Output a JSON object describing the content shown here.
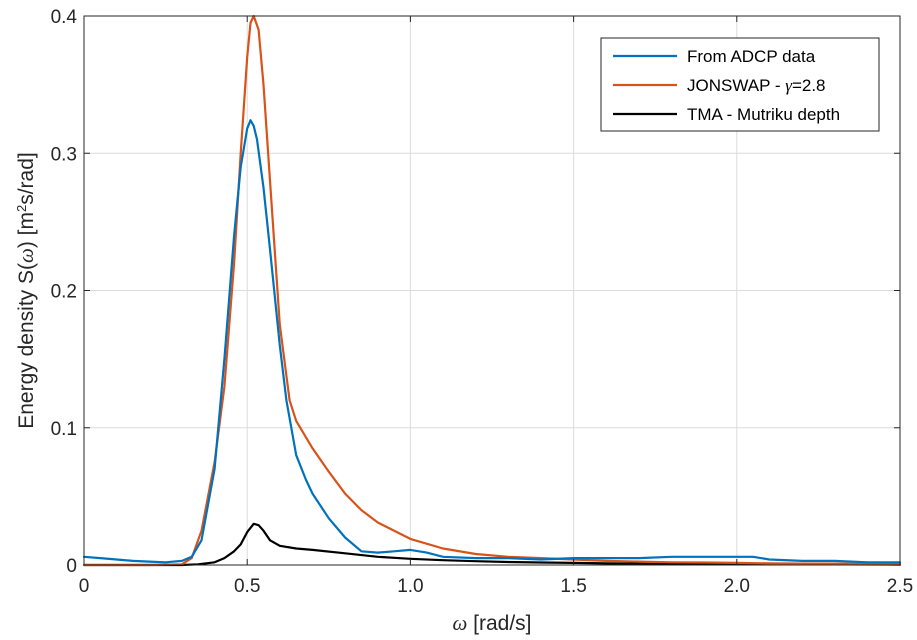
{
  "chart_data": {
    "type": "line",
    "title": "",
    "xlabel_symbol": "ω",
    "xlabel_units": " [rad/s]",
    "ylabel_prefix": "Energy density S(",
    "ylabel_symbol": "ω",
    "ylabel_mid": ") [m",
    "ylabel_sup": "2",
    "ylabel_suffix": "s/rad]",
    "xlim": [
      0,
      2.5
    ],
    "ylim": [
      0,
      0.4
    ],
    "xticks": [
      0,
      0.5,
      1.0,
      1.5,
      2.0,
      2.5
    ],
    "xtick_labels": [
      "0",
      "0.5",
      "1.0",
      "1.5",
      "2.0",
      "2.5"
    ],
    "yticks": [
      0,
      0.1,
      0.2,
      0.3,
      0.4
    ],
    "ytick_labels": [
      "0",
      "0.1",
      "0.2",
      "0.3",
      "0.4"
    ],
    "grid": true,
    "legend_position": "top-right",
    "legend": {
      "from_adcp": "From ADCP data",
      "jonswap_prefix": "JONSWAP - ",
      "jonswap_symbol": "γ",
      "jonswap_suffix": "=2.8",
      "tma": "TMA - Mutriku depth"
    },
    "series": [
      {
        "name": "From ADCP data",
        "color": "#0072BD",
        "x": [
          0,
          0.05,
          0.1,
          0.15,
          0.2,
          0.25,
          0.3,
          0.33,
          0.36,
          0.4,
          0.43,
          0.46,
          0.48,
          0.5,
          0.51,
          0.52,
          0.53,
          0.55,
          0.57,
          0.6,
          0.62,
          0.65,
          0.68,
          0.7,
          0.75,
          0.8,
          0.85,
          0.9,
          0.95,
          1.0,
          1.05,
          1.1,
          1.2,
          1.3,
          1.4,
          1.5,
          1.6,
          1.7,
          1.8,
          1.9,
          2.0,
          2.05,
          2.1,
          2.2,
          2.3,
          2.4,
          2.5
        ],
        "y": [
          0.006,
          0.005,
          0.004,
          0.003,
          0.0025,
          0.002,
          0.003,
          0.006,
          0.018,
          0.07,
          0.15,
          0.24,
          0.29,
          0.318,
          0.324,
          0.32,
          0.31,
          0.275,
          0.23,
          0.16,
          0.12,
          0.08,
          0.062,
          0.052,
          0.034,
          0.02,
          0.01,
          0.009,
          0.01,
          0.011,
          0.009,
          0.006,
          0.005,
          0.005,
          0.004,
          0.005,
          0.005,
          0.005,
          0.006,
          0.006,
          0.006,
          0.006,
          0.004,
          0.003,
          0.003,
          0.002,
          0.002
        ]
      },
      {
        "name": "JONSWAP - γ=2.8",
        "color": "#D95319",
        "x": [
          0,
          0.1,
          0.2,
          0.3,
          0.33,
          0.36,
          0.4,
          0.43,
          0.46,
          0.48,
          0.5,
          0.51,
          0.52,
          0.535,
          0.55,
          0.57,
          0.6,
          0.63,
          0.65,
          0.7,
          0.75,
          0.8,
          0.85,
          0.9,
          1.0,
          1.1,
          1.2,
          1.3,
          1.4,
          1.5,
          1.6,
          1.7,
          1.8,
          1.9,
          2.0,
          2.1,
          2.2,
          2.3,
          2.4,
          2.5
        ],
        "y": [
          0,
          0,
          0,
          0.0005,
          0.005,
          0.025,
          0.075,
          0.13,
          0.22,
          0.3,
          0.37,
          0.395,
          0.4,
          0.39,
          0.35,
          0.28,
          0.175,
          0.12,
          0.105,
          0.085,
          0.068,
          0.052,
          0.04,
          0.031,
          0.019,
          0.012,
          0.008,
          0.006,
          0.005,
          0.004,
          0.003,
          0.0025,
          0.002,
          0.0018,
          0.0015,
          0.0012,
          0.001,
          0.001,
          0.0008,
          0.0007
        ]
      },
      {
        "name": "TMA - Mutriku depth",
        "color": "#000000",
        "x": [
          0,
          0.1,
          0.2,
          0.3,
          0.35,
          0.4,
          0.43,
          0.46,
          0.48,
          0.5,
          0.52,
          0.535,
          0.55,
          0.57,
          0.6,
          0.65,
          0.7,
          0.8,
          0.9,
          1.0,
          1.1,
          1.2,
          1.3,
          1.4,
          1.5,
          1.6,
          1.8,
          2.0,
          2.2,
          2.5
        ],
        "y": [
          0,
          0,
          0,
          0,
          0.0005,
          0.002,
          0.005,
          0.01,
          0.015,
          0.024,
          0.03,
          0.029,
          0.025,
          0.018,
          0.014,
          0.012,
          0.011,
          0.0085,
          0.006,
          0.0045,
          0.0035,
          0.0028,
          0.0022,
          0.0018,
          0.0015,
          0.0012,
          0.0009,
          0.0007,
          0.0005,
          0.0003
        ]
      }
    ]
  }
}
